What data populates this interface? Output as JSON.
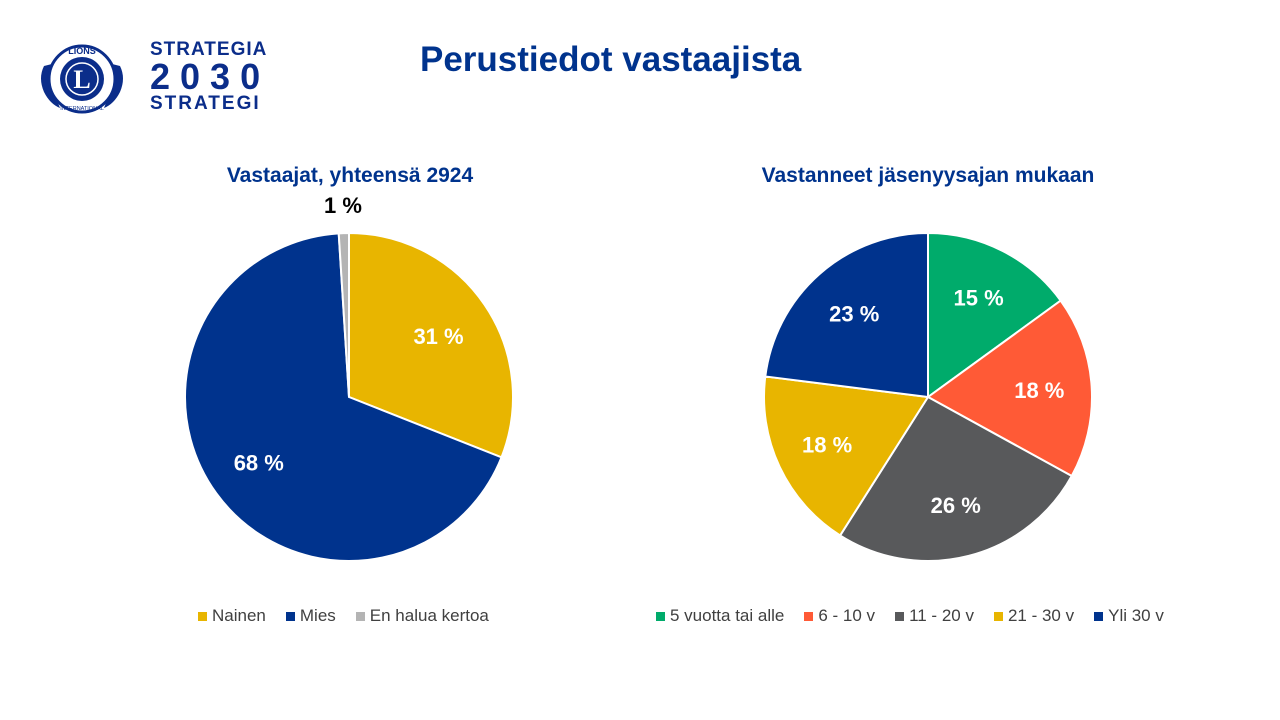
{
  "page_title": "Perustiedot vastaajista",
  "brand": {
    "line1": "STRATEGIA",
    "line2": "2030",
    "line3": "STRATEGI",
    "emblem_text_top": "LIONS",
    "emblem_text_bottom": "INTERNATIONAL",
    "emblem_letter": "L",
    "color": "#0b2d8a"
  },
  "chart_data": [
    {
      "type": "pie",
      "title": "Vastaajat, yhteensä 2924",
      "start_angle_deg": 0,
      "slices": [
        {
          "name": "Nainen",
          "value": 31,
          "label": "31 %",
          "color": "#e8b500",
          "label_color": "#ffffff"
        },
        {
          "name": "Mies",
          "value": 68,
          "label": "68 %",
          "color": "#00338d",
          "label_color": "#ffffff"
        },
        {
          "name": "En halua kertoa",
          "value": 1,
          "label": "1 %",
          "color": "#b4b4b4",
          "label_color": "#000000"
        }
      ],
      "legend_position": "bottom"
    },
    {
      "type": "pie",
      "title": "Vastanneet jäsenyysajan mukaan",
      "start_angle_deg": 0,
      "slices": [
        {
          "name": "5 vuotta tai alle",
          "value": 15,
          "label": "15 %",
          "color": "#00ab6b",
          "label_color": "#ffffff"
        },
        {
          "name": "6 - 10 v",
          "value": 18,
          "label": "18 %",
          "color": "#ff5a36",
          "label_color": "#ffffff"
        },
        {
          "name": "11 - 20 v",
          "value": 26,
          "label": "26 %",
          "color": "#58595b",
          "label_color": "#ffffff"
        },
        {
          "name": "21 - 30 v",
          "value": 18,
          "label": "18 %",
          "color": "#e8b500",
          "label_color": "#ffffff"
        },
        {
          "name": "Yli 30 v",
          "value": 23,
          "label": "23 %",
          "color": "#00338d",
          "label_color": "#ffffff"
        }
      ],
      "legend_position": "bottom"
    }
  ]
}
